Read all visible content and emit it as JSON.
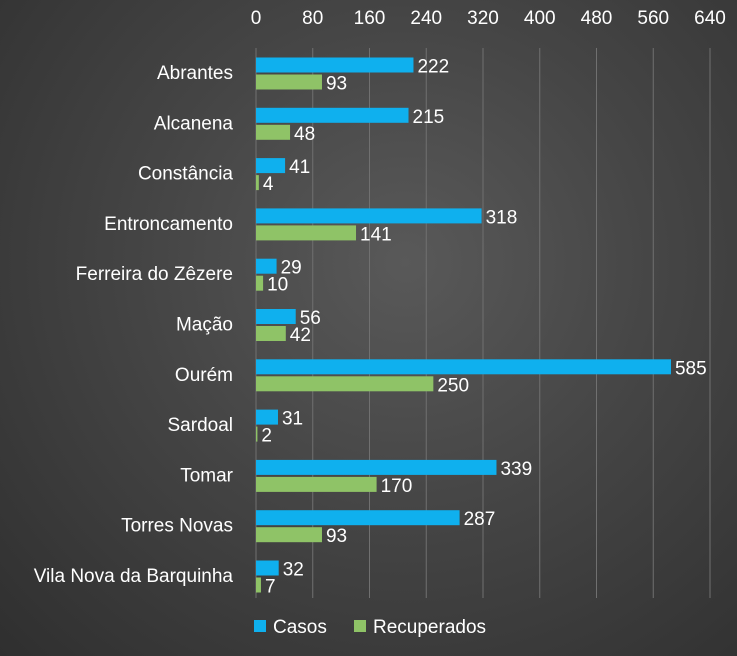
{
  "chart_data": {
    "type": "bar",
    "orientation": "horizontal",
    "title": "",
    "xlabel": "",
    "ylabel": "",
    "xlim": [
      0,
      640
    ],
    "x_ticks": [
      0,
      80,
      160,
      240,
      320,
      400,
      480,
      560,
      640
    ],
    "x_tick_labels": [
      "0",
      "80",
      "160",
      "240",
      "320",
      "400",
      "480",
      "560",
      "640"
    ],
    "x_axis_position": "top",
    "grid": true,
    "legend_position": "bottom",
    "categories": [
      "Abrantes",
      "Alcanena",
      "Constância",
      "Entroncamento",
      "Ferreira do Zêzere",
      "Mação",
      "Ourém",
      "Sardoal",
      "Tomar",
      "Torres Novas",
      "Vila Nova da Barquinha"
    ],
    "series": [
      {
        "name": "Casos",
        "color": "#0fb0ee",
        "values": [
          222,
          215,
          41,
          318,
          29,
          56,
          585,
          31,
          339,
          287,
          32
        ]
      },
      {
        "name": "Recuperados",
        "color": "#8fc367",
        "values": [
          93,
          48,
          4,
          141,
          10,
          42,
          250,
          2,
          170,
          93,
          7
        ]
      }
    ],
    "colors": {
      "gridline": "#707070",
      "text": "#ffffff"
    }
  }
}
